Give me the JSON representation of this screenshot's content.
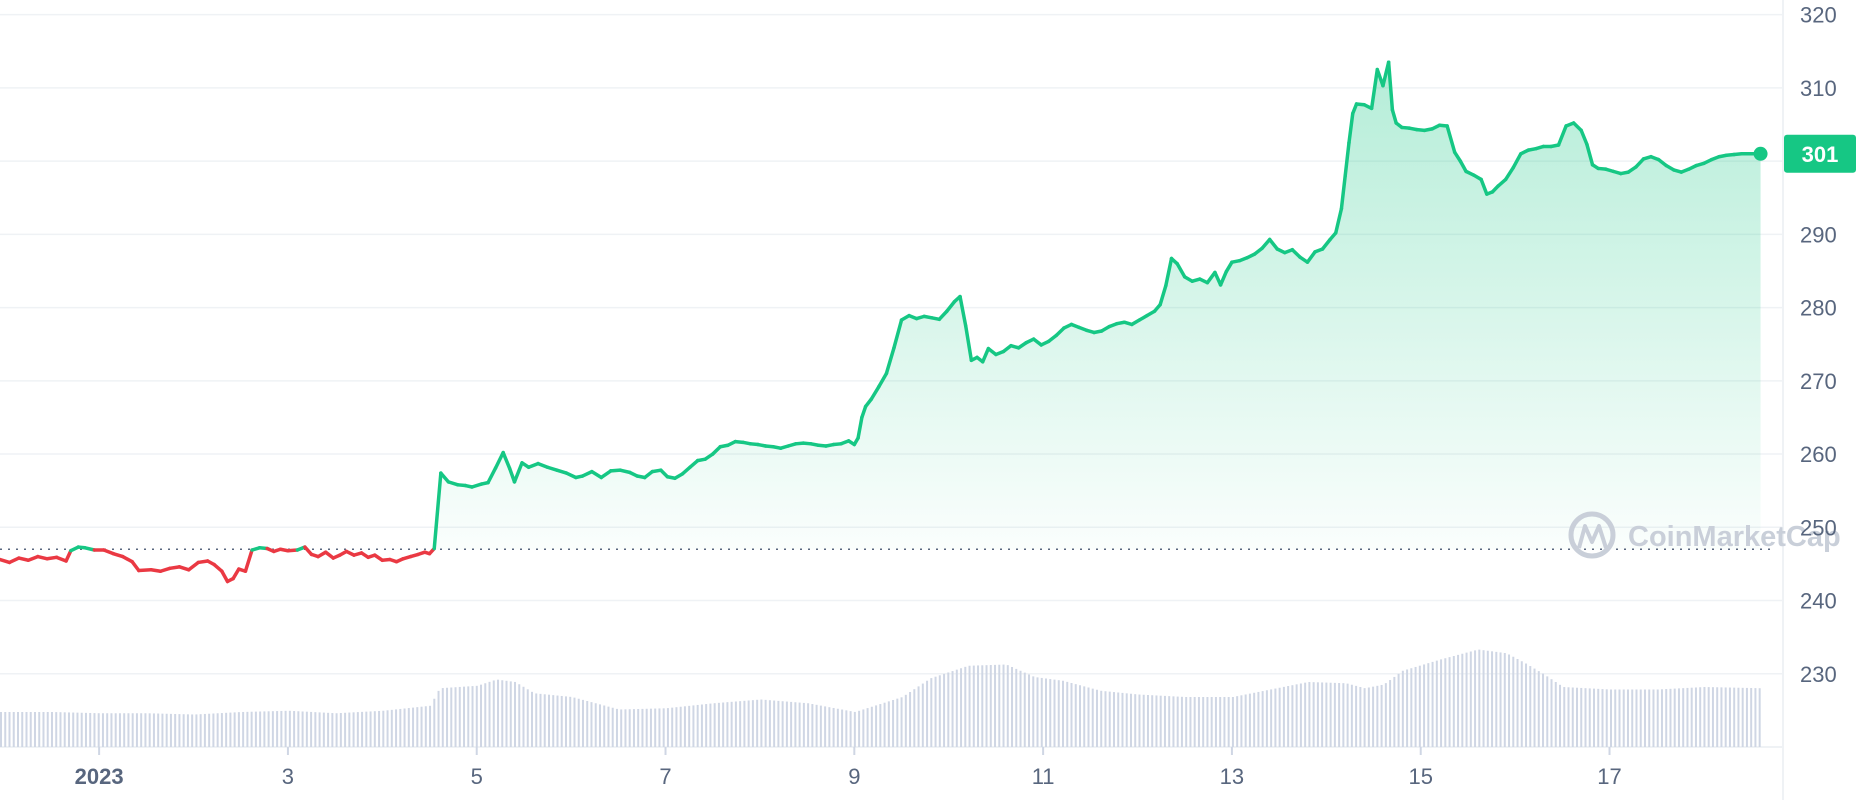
{
  "chart_data": {
    "type": "area",
    "ylim": [
      220,
      322
    ],
    "xlim": [
      -1.05,
      17.7
    ],
    "yticks": [
      230,
      240,
      250,
      260,
      270,
      280,
      290,
      300,
      310,
      320
    ],
    "ytick_labels": [
      "230",
      "240",
      "250",
      "260",
      "270",
      "280",
      "290",
      "",
      "310",
      "320"
    ],
    "xticks": [
      0,
      2,
      4,
      6,
      8,
      10,
      12,
      14,
      16
    ],
    "xtick_labels": [
      "2023",
      "3",
      "5",
      "7",
      "9",
      "11",
      "13",
      "15",
      "17"
    ],
    "baseline": 247,
    "current_price_label": "301",
    "current_price": 301,
    "colors": {
      "up": "#16c784",
      "down": "#ea3943",
      "volume": "#cfd6e4",
      "grid": "#eff2f5",
      "badge": "#16c784"
    },
    "watermark": "CoinMarketCap",
    "series": [
      {
        "values": [
          [
            -1.05,
            245.6
          ],
          [
            -0.95,
            245.2
          ],
          [
            -0.85,
            245.8
          ],
          [
            -0.75,
            245.5
          ],
          [
            -0.65,
            246.0
          ],
          [
            -0.55,
            245.7
          ],
          [
            -0.45,
            245.9
          ],
          [
            -0.35,
            245.4
          ],
          [
            -0.3,
            246.8
          ],
          [
            -0.22,
            247.3
          ],
          [
            -0.15,
            247.2
          ],
          [
            -0.05,
            246.9
          ],
          [
            0.05,
            246.9
          ],
          [
            0.15,
            246.4
          ],
          [
            0.25,
            246.0
          ],
          [
            0.35,
            245.3
          ],
          [
            0.42,
            244.1
          ],
          [
            0.55,
            244.2
          ],
          [
            0.65,
            244.0
          ],
          [
            0.75,
            244.4
          ],
          [
            0.85,
            244.6
          ],
          [
            0.95,
            244.2
          ],
          [
            1.05,
            245.2
          ],
          [
            1.15,
            245.4
          ],
          [
            1.22,
            244.9
          ],
          [
            1.3,
            244.0
          ],
          [
            1.36,
            242.6
          ],
          [
            1.42,
            243.0
          ],
          [
            1.48,
            244.3
          ],
          [
            1.55,
            244.0
          ],
          [
            1.62,
            246.9
          ],
          [
            1.7,
            247.2
          ],
          [
            1.78,
            247.1
          ],
          [
            1.85,
            246.7
          ],
          [
            1.92,
            247.0
          ],
          [
            2.0,
            246.8
          ],
          [
            2.1,
            246.9
          ],
          [
            2.18,
            247.3
          ],
          [
            2.25,
            246.3
          ],
          [
            2.32,
            246.0
          ],
          [
            2.4,
            246.6
          ],
          [
            2.48,
            245.8
          ],
          [
            2.55,
            246.2
          ],
          [
            2.62,
            246.7
          ],
          [
            2.7,
            246.2
          ],
          [
            2.78,
            246.5
          ],
          [
            2.85,
            245.9
          ],
          [
            2.92,
            246.2
          ],
          [
            3.0,
            245.5
          ],
          [
            3.08,
            245.6
          ],
          [
            3.15,
            245.3
          ],
          [
            3.22,
            245.7
          ],
          [
            3.3,
            246.0
          ],
          [
            3.38,
            246.3
          ],
          [
            3.45,
            246.6
          ],
          [
            3.5,
            246.4
          ],
          [
            3.55,
            247.1
          ],
          [
            3.62,
            257.4
          ],
          [
            3.7,
            256.2
          ],
          [
            3.8,
            255.8
          ],
          [
            3.88,
            255.7
          ],
          [
            3.95,
            255.5
          ],
          [
            4.05,
            255.9
          ],
          [
            4.12,
            256.1
          ],
          [
            4.2,
            258.1
          ],
          [
            4.28,
            260.2
          ],
          [
            4.35,
            258.0
          ],
          [
            4.4,
            256.2
          ],
          [
            4.48,
            258.8
          ],
          [
            4.55,
            258.2
          ],
          [
            4.65,
            258.7
          ],
          [
            4.75,
            258.2
          ],
          [
            4.85,
            257.8
          ],
          [
            4.95,
            257.4
          ],
          [
            5.05,
            256.8
          ],
          [
            5.12,
            257.0
          ],
          [
            5.22,
            257.6
          ],
          [
            5.32,
            256.8
          ],
          [
            5.42,
            257.7
          ],
          [
            5.52,
            257.8
          ],
          [
            5.62,
            257.5
          ],
          [
            5.7,
            257.0
          ],
          [
            5.78,
            256.8
          ],
          [
            5.86,
            257.6
          ],
          [
            5.95,
            257.8
          ],
          [
            6.02,
            256.9
          ],
          [
            6.1,
            256.7
          ],
          [
            6.18,
            257.3
          ],
          [
            6.26,
            258.2
          ],
          [
            6.34,
            259.1
          ],
          [
            6.42,
            259.3
          ],
          [
            6.5,
            260.0
          ],
          [
            6.58,
            261.0
          ],
          [
            6.66,
            261.2
          ],
          [
            6.74,
            261.7
          ],
          [
            6.82,
            261.6
          ],
          [
            6.9,
            261.4
          ],
          [
            6.98,
            261.3
          ],
          [
            7.06,
            261.1
          ],
          [
            7.14,
            261.0
          ],
          [
            7.22,
            260.8
          ],
          [
            7.3,
            261.1
          ],
          [
            7.38,
            261.4
          ],
          [
            7.46,
            261.5
          ],
          [
            7.54,
            261.4
          ],
          [
            7.62,
            261.2
          ],
          [
            7.7,
            261.1
          ],
          [
            7.78,
            261.3
          ],
          [
            7.86,
            261.4
          ],
          [
            7.94,
            261.8
          ],
          [
            8.0,
            261.3
          ],
          [
            8.04,
            262.2
          ],
          [
            8.08,
            265.0
          ],
          [
            8.12,
            266.5
          ],
          [
            8.18,
            267.5
          ],
          [
            8.26,
            269.2
          ],
          [
            8.34,
            271.0
          ],
          [
            8.42,
            274.5
          ],
          [
            8.5,
            278.3
          ],
          [
            8.58,
            278.9
          ],
          [
            8.66,
            278.5
          ],
          [
            8.74,
            278.8
          ],
          [
            8.82,
            278.6
          ],
          [
            8.9,
            278.4
          ],
          [
            8.98,
            279.5
          ],
          [
            9.06,
            280.8
          ],
          [
            9.12,
            281.5
          ],
          [
            9.18,
            277.5
          ],
          [
            9.24,
            272.8
          ],
          [
            9.3,
            273.2
          ],
          [
            9.36,
            272.6
          ],
          [
            9.42,
            274.4
          ],
          [
            9.5,
            273.6
          ],
          [
            9.58,
            274.0
          ],
          [
            9.66,
            274.8
          ],
          [
            9.74,
            274.5
          ],
          [
            9.82,
            275.2
          ],
          [
            9.9,
            275.7
          ],
          [
            9.98,
            274.9
          ],
          [
            10.06,
            275.4
          ],
          [
            10.14,
            276.2
          ],
          [
            10.22,
            277.2
          ],
          [
            10.3,
            277.7
          ],
          [
            10.38,
            277.3
          ],
          [
            10.46,
            276.9
          ],
          [
            10.54,
            276.6
          ],
          [
            10.62,
            276.8
          ],
          [
            10.7,
            277.4
          ],
          [
            10.78,
            277.8
          ],
          [
            10.86,
            278.0
          ],
          [
            10.94,
            277.7
          ],
          [
            11.02,
            278.3
          ],
          [
            11.1,
            278.9
          ],
          [
            11.18,
            279.5
          ],
          [
            11.24,
            280.4
          ],
          [
            11.3,
            283.0
          ],
          [
            11.36,
            286.7
          ],
          [
            11.42,
            286.0
          ],
          [
            11.5,
            284.2
          ],
          [
            11.58,
            283.6
          ],
          [
            11.66,
            283.9
          ],
          [
            11.74,
            283.4
          ],
          [
            11.82,
            284.8
          ],
          [
            11.88,
            283.1
          ],
          [
            11.94,
            284.9
          ],
          [
            12.0,
            286.2
          ],
          [
            12.08,
            286.4
          ],
          [
            12.16,
            286.8
          ],
          [
            12.24,
            287.3
          ],
          [
            12.32,
            288.1
          ],
          [
            12.4,
            289.3
          ],
          [
            12.48,
            288.0
          ],
          [
            12.56,
            287.5
          ],
          [
            12.64,
            287.9
          ],
          [
            12.72,
            286.9
          ],
          [
            12.8,
            286.2
          ],
          [
            12.88,
            287.6
          ],
          [
            12.96,
            288.0
          ],
          [
            13.04,
            289.3
          ],
          [
            13.1,
            290.2
          ],
          [
            13.16,
            293.5
          ],
          [
            13.2,
            298.0
          ],
          [
            13.24,
            302.5
          ],
          [
            13.28,
            306.5
          ],
          [
            13.32,
            307.8
          ],
          [
            13.4,
            307.7
          ],
          [
            13.48,
            307.2
          ],
          [
            13.54,
            312.5
          ],
          [
            13.6,
            310.3
          ],
          [
            13.66,
            313.5
          ],
          [
            13.7,
            307.0
          ],
          [
            13.74,
            305.2
          ],
          [
            13.8,
            304.6
          ],
          [
            13.88,
            304.5
          ],
          [
            13.96,
            304.3
          ],
          [
            14.04,
            304.2
          ],
          [
            14.12,
            304.4
          ],
          [
            14.2,
            304.9
          ],
          [
            14.28,
            304.8
          ],
          [
            14.36,
            301.2
          ],
          [
            14.42,
            300.0
          ],
          [
            14.48,
            298.6
          ],
          [
            14.56,
            298.1
          ],
          [
            14.64,
            297.5
          ],
          [
            14.7,
            295.5
          ],
          [
            14.76,
            295.8
          ],
          [
            14.82,
            296.6
          ],
          [
            14.9,
            297.5
          ],
          [
            14.98,
            299.1
          ],
          [
            15.06,
            301.0
          ],
          [
            15.14,
            301.5
          ],
          [
            15.22,
            301.7
          ],
          [
            15.3,
            302.0
          ],
          [
            15.38,
            302.0
          ],
          [
            15.46,
            302.2
          ],
          [
            15.54,
            304.8
          ],
          [
            15.62,
            305.2
          ],
          [
            15.7,
            304.2
          ],
          [
            15.76,
            302.3
          ],
          [
            15.82,
            299.5
          ],
          [
            15.88,
            299.0
          ],
          [
            15.96,
            298.9
          ],
          [
            16.04,
            298.6
          ],
          [
            16.12,
            298.3
          ],
          [
            16.2,
            298.5
          ],
          [
            16.28,
            299.2
          ],
          [
            16.36,
            300.3
          ],
          [
            16.44,
            300.6
          ],
          [
            16.52,
            300.2
          ],
          [
            16.6,
            299.4
          ],
          [
            16.68,
            298.8
          ],
          [
            16.76,
            298.5
          ],
          [
            16.84,
            298.9
          ],
          [
            16.92,
            299.4
          ],
          [
            17.0,
            299.7
          ],
          [
            17.08,
            300.2
          ],
          [
            17.16,
            300.6
          ],
          [
            17.24,
            300.8
          ],
          [
            17.32,
            300.9
          ],
          [
            17.4,
            301.0
          ],
          [
            17.5,
            301.0
          ],
          [
            17.6,
            301.0
          ]
        ]
      }
    ],
    "volume": [
      [
        -1.05,
        0.28
      ],
      [
        -0.5,
        0.28
      ],
      [
        0.0,
        0.27
      ],
      [
        0.5,
        0.27
      ],
      [
        1.0,
        0.26
      ],
      [
        1.5,
        0.28
      ],
      [
        2.0,
        0.29
      ],
      [
        2.5,
        0.27
      ],
      [
        3.0,
        0.29
      ],
      [
        3.5,
        0.33
      ],
      [
        3.6,
        0.47
      ],
      [
        4.0,
        0.49
      ],
      [
        4.2,
        0.54
      ],
      [
        4.4,
        0.52
      ],
      [
        4.6,
        0.43
      ],
      [
        5.0,
        0.4
      ],
      [
        5.5,
        0.3
      ],
      [
        6.0,
        0.31
      ],
      [
        6.5,
        0.35
      ],
      [
        7.0,
        0.38
      ],
      [
        7.5,
        0.35
      ],
      [
        8.0,
        0.28
      ],
      [
        8.5,
        0.4
      ],
      [
        8.8,
        0.55
      ],
      [
        9.2,
        0.65
      ],
      [
        9.6,
        0.66
      ],
      [
        9.9,
        0.56
      ],
      [
        10.2,
        0.53
      ],
      [
        10.6,
        0.45
      ],
      [
        11.0,
        0.42
      ],
      [
        11.5,
        0.4
      ],
      [
        12.0,
        0.4
      ],
      [
        12.4,
        0.46
      ],
      [
        12.8,
        0.52
      ],
      [
        13.2,
        0.51
      ],
      [
        13.4,
        0.47
      ],
      [
        13.6,
        0.5
      ],
      [
        13.8,
        0.61
      ],
      [
        14.2,
        0.7
      ],
      [
        14.6,
        0.78
      ],
      [
        14.9,
        0.75
      ],
      [
        15.1,
        0.67
      ],
      [
        15.3,
        0.58
      ],
      [
        15.5,
        0.48
      ],
      [
        16.0,
        0.46
      ],
      [
        16.5,
        0.46
      ],
      [
        17.0,
        0.48
      ],
      [
        17.6,
        0.47
      ]
    ]
  }
}
